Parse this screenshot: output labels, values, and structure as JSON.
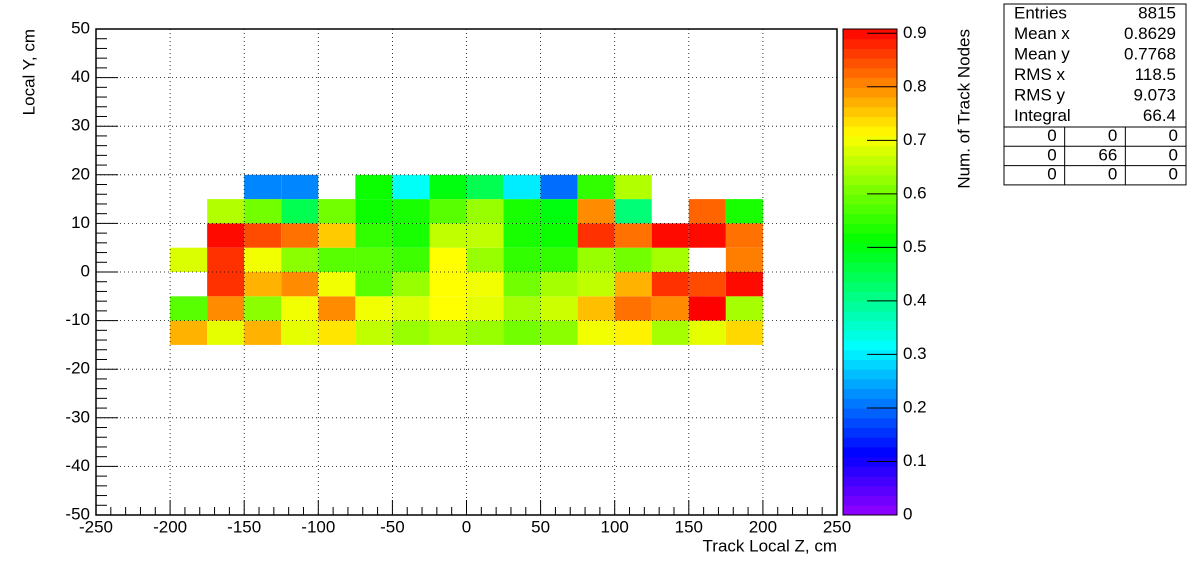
{
  "chart_data": {
    "type": "heatmap",
    "x_label": "Track Local Z, cm",
    "y_label": "Local Y, cm",
    "z_label": "Num. of Track Nodes",
    "xlim": [
      -250,
      250
    ],
    "xticks": [
      -250,
      -200,
      -150,
      -100,
      -50,
      0,
      50,
      100,
      150,
      200,
      250
    ],
    "ylim": [
      -50,
      50
    ],
    "yticks": [
      -50,
      -40,
      -30,
      -20,
      -10,
      0,
      10,
      20,
      30,
      40,
      50
    ],
    "zlim": [
      0,
      0.908
    ],
    "zticks": [
      0,
      0.1,
      0.2,
      0.3,
      0.4,
      0.5,
      0.6,
      0.7,
      0.8,
      0.9
    ],
    "grid": true,
    "xbins": [
      -200,
      -175,
      -150,
      -125,
      -100,
      -75,
      -50,
      -25,
      0,
      25,
      50,
      75,
      100,
      125,
      150,
      175,
      200
    ],
    "ybins": [
      -15,
      -10,
      -5,
      0,
      5,
      10,
      15,
      20
    ],
    "z": [
      [
        0.77,
        0.69,
        0.77,
        0.69,
        0.73,
        0.66,
        0.63,
        0.65,
        0.63,
        0.6,
        0.62,
        0.7,
        0.72,
        0.64,
        0.69,
        0.74
      ],
      [
        0.58,
        0.8,
        0.62,
        0.7,
        0.8,
        0.7,
        0.68,
        0.71,
        0.69,
        0.64,
        0.67,
        0.76,
        0.82,
        0.8,
        0.91,
        0.64
      ],
      [
        null,
        0.87,
        0.77,
        0.8,
        0.7,
        0.58,
        0.63,
        0.71,
        0.7,
        0.6,
        0.64,
        0.66,
        0.77,
        0.87,
        0.85,
        0.9
      ],
      [
        0.68,
        0.87,
        0.7,
        0.62,
        0.58,
        0.58,
        0.56,
        0.71,
        0.63,
        0.55,
        0.55,
        0.63,
        0.6,
        0.64,
        null,
        0.81
      ],
      [
        null,
        0.9,
        0.85,
        0.82,
        0.75,
        0.55,
        0.53,
        0.66,
        0.66,
        0.53,
        0.52,
        0.87,
        0.82,
        0.9,
        0.9,
        0.82
      ],
      [
        null,
        0.65,
        0.6,
        0.45,
        0.6,
        0.52,
        0.53,
        0.58,
        0.63,
        0.53,
        0.5,
        0.8,
        0.42,
        null,
        0.83,
        0.53
      ],
      [
        null,
        null,
        0.22,
        0.22,
        null,
        0.52,
        0.32,
        0.5,
        0.45,
        0.3,
        0.2,
        0.55,
        0.65,
        null,
        null,
        null
      ]
    ],
    "stats": [
      {
        "label": "Entries",
        "value": 8815
      },
      {
        "label": "Mean x",
        "value": 0.8629
      },
      {
        "label": "Mean y",
        "value": 0.7768
      },
      {
        "label": "RMS x",
        "value": 118.5
      },
      {
        "label": "RMS y",
        "value": 9.073
      },
      {
        "label": "Integral",
        "value": 66.4
      }
    ],
    "overflow": [
      [
        0,
        0,
        0
      ],
      [
        0,
        66,
        0
      ],
      [
        0,
        0,
        0
      ]
    ]
  }
}
